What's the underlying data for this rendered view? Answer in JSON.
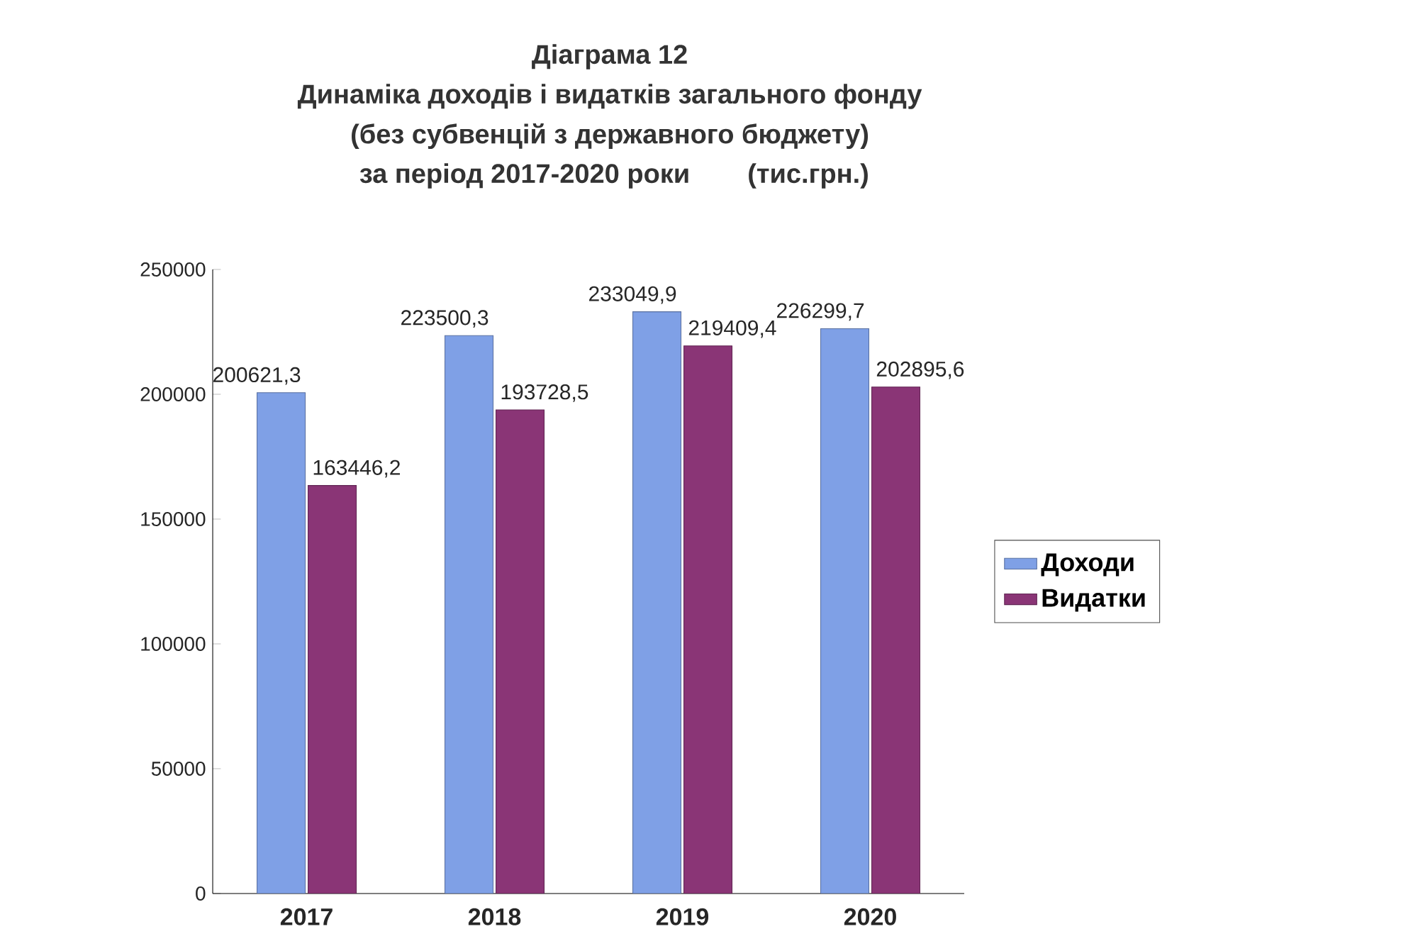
{
  "chart_data": {
    "type": "bar",
    "title": "Діаграма 12",
    "subtitle": "Динаміка доходів і видатків загального фонду",
    "annotations": [
      "(без субвенцій з державного бюджету)",
      "за період 2017-2020 роки",
      "(тис.грн.)"
    ],
    "categories": [
      "2017",
      "2018",
      "2019",
      "2020"
    ],
    "series": [
      {
        "name": "Доходи",
        "color": "#7fa0e6",
        "values": [
          200621.3,
          223500.3,
          233049.9,
          226299.7
        ],
        "value_labels": [
          "200621,3",
          "223500,3",
          "233049,9",
          "226299,7"
        ]
      },
      {
        "name": "Видатки",
        "color": "#8a3576",
        "values": [
          163446.2,
          193728.5,
          219409.4,
          202895.6
        ],
        "value_labels": [
          "163446,2",
          "193728,5",
          "219409,4",
          "202895,6"
        ]
      }
    ],
    "ylim": [
      0,
      250000
    ],
    "yticks": [
      0,
      50000,
      100000,
      150000,
      200000,
      250000
    ],
    "legend": "right"
  }
}
